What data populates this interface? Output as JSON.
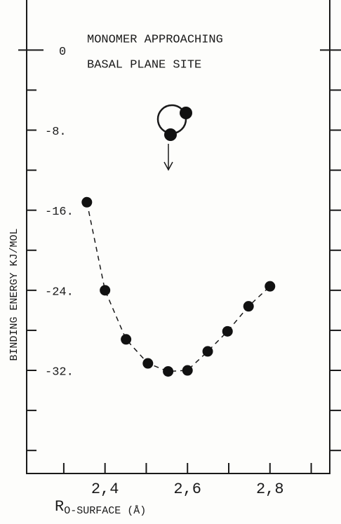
{
  "chart_data": {
    "type": "scatter",
    "annotation_lines": [
      "MONOMER APPROACHING",
      "BASAL PLANE SITE"
    ],
    "ylabel": "BINDING ENERGY  KJ/MOL",
    "xlabel": "R",
    "xlabel_subscript": "O-SURFACE (Å)",
    "xlim": [
      2.21,
      2.945
    ],
    "ylim": [
      -42.3,
      5
    ],
    "xticks": [
      {
        "value": 2.4,
        "label": "2,4"
      },
      {
        "value": 2.6,
        "label": "2,6"
      },
      {
        "value": 2.8,
        "label": "2,8"
      }
    ],
    "xticks_minor": [
      2.3,
      2.5,
      2.7,
      2.9
    ],
    "yticks": [
      {
        "value": 0,
        "label": "0"
      },
      {
        "value": -8,
        "label": "-8."
      },
      {
        "value": -16,
        "label": "-16."
      },
      {
        "value": -24,
        "label": "-24."
      },
      {
        "value": -32,
        "label": "-32."
      }
    ],
    "yticks_minor": [
      -4,
      -12,
      -20,
      -28,
      -36,
      -40
    ],
    "color": "#111111",
    "x": [
      2.356,
      2.4,
      2.451,
      2.504,
      2.553,
      2.6,
      2.649,
      2.697,
      2.748,
      2.8
    ],
    "values": [
      -15.2,
      -24.0,
      -28.9,
      -31.3,
      -32.1,
      -32.0,
      -30.1,
      -28.1,
      -25.6,
      -23.6
    ]
  }
}
